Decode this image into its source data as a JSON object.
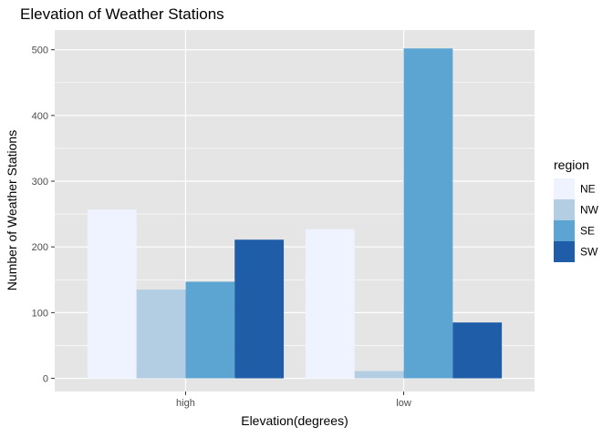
{
  "chart_data": {
    "type": "bar",
    "title": "Elevation of Weather Stations",
    "xlabel": "Elevation(degrees)",
    "ylabel": "Number of Weather Stations",
    "categories": [
      "high",
      "low"
    ],
    "series": [
      {
        "name": "NE",
        "values": [
          257,
          227
        ],
        "color": "#EFF3FF"
      },
      {
        "name": "NW",
        "values": [
          135,
          11
        ],
        "color": "#B3CDE3"
      },
      {
        "name": "SE",
        "values": [
          147,
          502
        ],
        "color": "#5CA4D1"
      },
      {
        "name": "SW",
        "values": [
          211,
          85
        ],
        "color": "#1F5DA8"
      }
    ],
    "yticks": [
      0,
      100,
      200,
      300,
      400,
      500
    ],
    "ylim": [
      -20,
      530
    ],
    "legend": {
      "title": "region",
      "placement": "right"
    },
    "grid": true
  },
  "colors": {
    "panel": "#E5E5E5",
    "grid": "#FFFFFF"
  }
}
